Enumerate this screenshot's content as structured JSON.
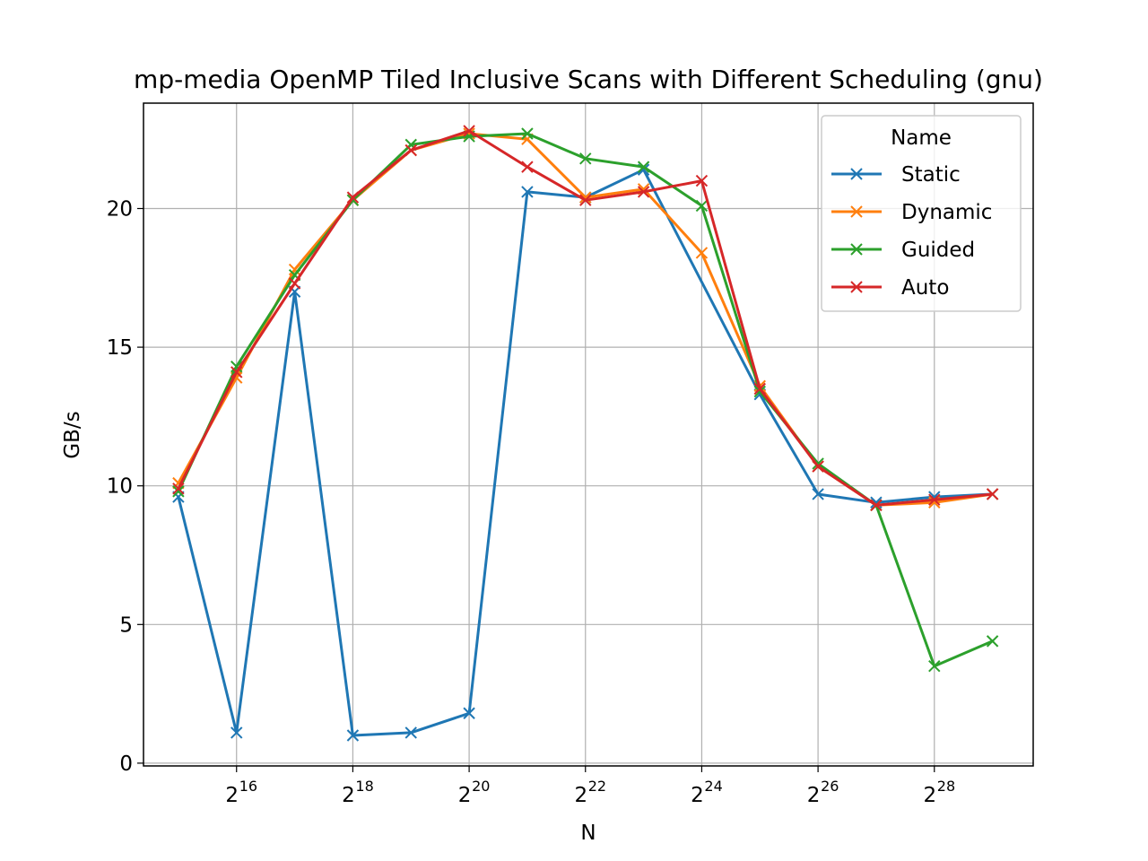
{
  "chart_data": {
    "type": "line",
    "title": "mp-media OpenMP Tiled Inclusive Scans with Different Scheduling (gnu)",
    "xlabel": "N",
    "ylabel": "GB/s",
    "x_scale": "log2",
    "x_exponents": [
      15,
      16,
      17,
      18,
      19,
      20,
      21,
      22,
      23,
      24,
      25,
      26,
      27,
      28,
      29
    ],
    "xlim_exponent": [
      14.4,
      29.7
    ],
    "ylim": [
      -0.1,
      23.8
    ],
    "y_ticks": [
      0,
      5,
      10,
      15,
      20
    ],
    "x_tick_exponents": [
      16,
      18,
      20,
      22,
      24,
      26,
      28
    ],
    "x_tick_base": "2",
    "grid": true,
    "marker": "x",
    "legend": {
      "title": "Name",
      "position": "top-right"
    },
    "series": [
      {
        "name": "Static",
        "color": "#1f77b4",
        "values": [
          9.6,
          1.1,
          17.0,
          1.0,
          1.1,
          1.8,
          20.6,
          20.4,
          21.4,
          null,
          13.3,
          9.7,
          9.4,
          9.6,
          9.7
        ]
      },
      {
        "name": "Dynamic",
        "color": "#ff7f0e",
        "values": [
          10.1,
          13.9,
          17.8,
          20.3,
          22.1,
          22.7,
          22.5,
          20.4,
          20.7,
          18.4,
          13.6,
          10.7,
          9.3,
          9.4,
          9.7
        ]
      },
      {
        "name": "Guided",
        "color": "#2ca02c",
        "values": [
          9.8,
          14.3,
          17.6,
          20.3,
          22.3,
          22.6,
          22.7,
          21.8,
          21.5,
          20.1,
          13.4,
          10.8,
          9.3,
          3.5,
          4.4
        ]
      },
      {
        "name": "Auto",
        "color": "#d62728",
        "values": [
          9.9,
          14.1,
          17.3,
          20.4,
          22.1,
          22.8,
          21.5,
          20.3,
          20.6,
          21.0,
          13.5,
          10.7,
          9.3,
          9.5,
          9.7
        ]
      }
    ]
  }
}
